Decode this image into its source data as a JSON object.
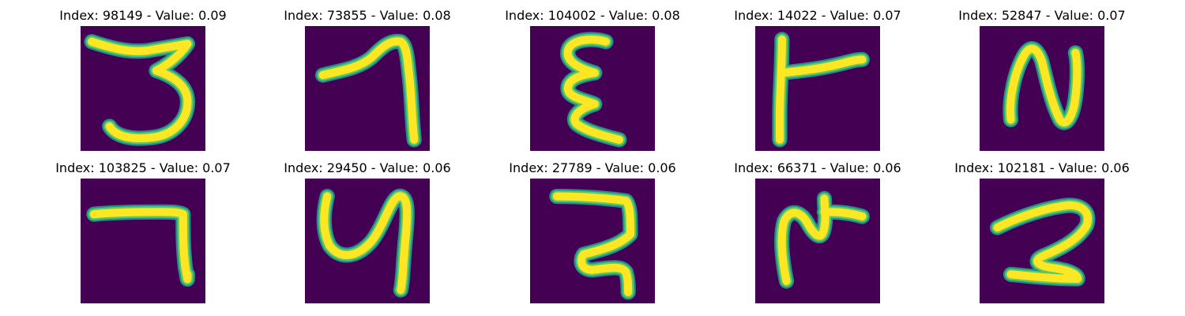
{
  "colors": {
    "background": "#440154",
    "stroke_core": "#fde725",
    "stroke_mid": "#5ec962",
    "stroke_edge": "#21918c"
  },
  "samples": [
    {
      "title": "Index: 98149 - Value: 0.09"
    },
    {
      "title": "Index: 73855 - Value: 0.08"
    },
    {
      "title": "Index: 104002 - Value: 0.08"
    },
    {
      "title": "Index: 14022 - Value: 0.07"
    },
    {
      "title": "Index: 52847 - Value: 0.07"
    },
    {
      "title": "Index: 103825 - Value: 0.07"
    },
    {
      "title": "Index: 29450 - Value: 0.06"
    },
    {
      "title": "Index: 27789 - Value: 0.06"
    },
    {
      "title": "Index: 66371 - Value: 0.06"
    },
    {
      "title": "Index: 102181 - Value: 0.06"
    }
  ]
}
